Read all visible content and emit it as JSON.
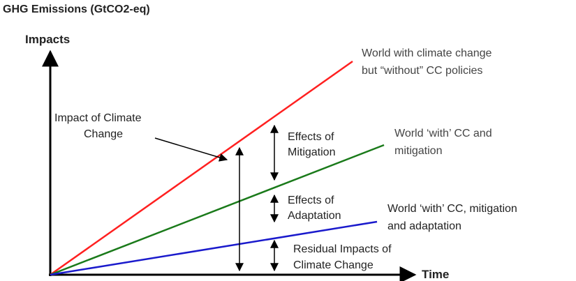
{
  "title": "GHG Emissions (GtCO2-eq)",
  "axes": {
    "y_label": "Impacts",
    "x_label": "Time"
  },
  "lines": [
    {
      "label": [
        "World with climate change",
        "but “without” CC policies"
      ]
    },
    {
      "label": [
        "World ‘with’ CC and",
        "mitigation"
      ]
    },
    {
      "label": [
        "World ‘with’ CC, mitigation",
        "and adaptation"
      ]
    }
  ],
  "annotations": {
    "impact": [
      "Impact of Climate",
      "Change"
    ],
    "mitigation": [
      "Effects of",
      "Mitigation"
    ],
    "adaptation": [
      "Effects of",
      "Adaptation"
    ],
    "residual": [
      "Residual Impacts of",
      "Climate Change"
    ]
  }
}
